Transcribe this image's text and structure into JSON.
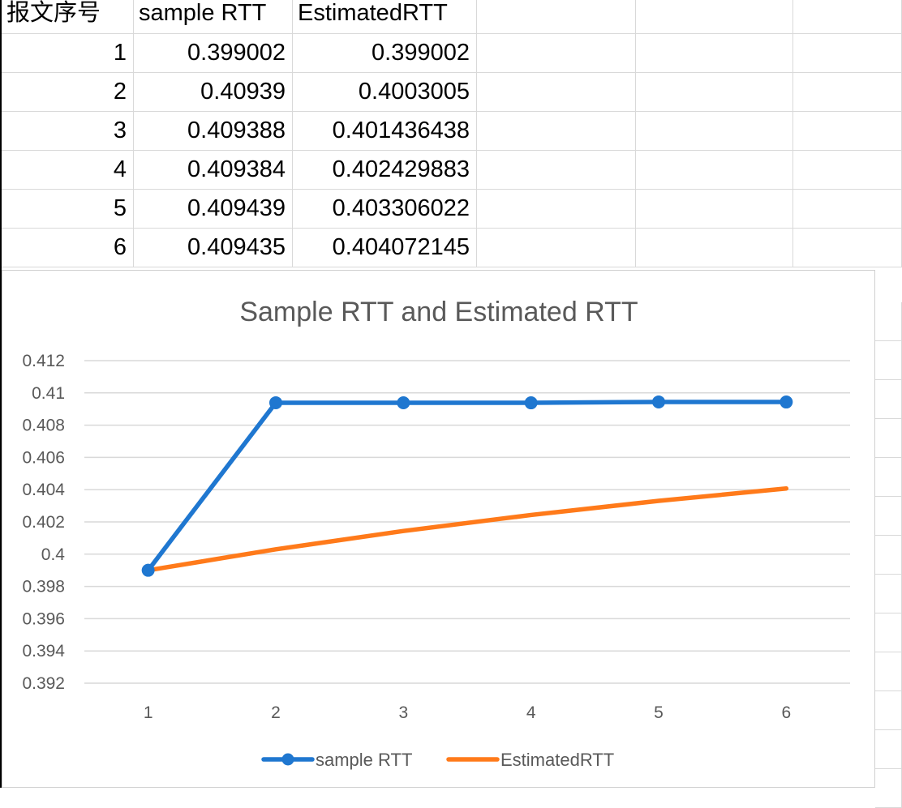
{
  "table": {
    "headers": [
      "报文序号",
      "sample RTT",
      "EstimatedRTT"
    ],
    "rows": [
      [
        "1",
        "0.399002",
        "0.399002"
      ],
      [
        "2",
        "0.40939",
        "0.4003005"
      ],
      [
        "3",
        "0.409388",
        "0.401436438"
      ],
      [
        "4",
        "0.409384",
        "0.402429883"
      ],
      [
        "5",
        "0.409439",
        "0.403306022"
      ],
      [
        "6",
        "0.409435",
        "0.404072145"
      ]
    ]
  },
  "chart_data": {
    "type": "line",
    "title": "Sample RTT and Estimated RTT",
    "xlabel": "",
    "ylabel": "",
    "categories": [
      "1",
      "2",
      "3",
      "4",
      "5",
      "6"
    ],
    "ylim": [
      0.392,
      0.412
    ],
    "yticks": [
      "0.392",
      "0.394",
      "0.396",
      "0.398",
      "0.4",
      "0.402",
      "0.404",
      "0.406",
      "0.408",
      "0.41",
      "0.412"
    ],
    "grid": true,
    "legend": "bottom",
    "series": [
      {
        "name": "sample RTT",
        "values": [
          0.399002,
          0.40939,
          0.409388,
          0.409384,
          0.409439,
          0.409435
        ],
        "color": "#1f77d0",
        "markers": true
      },
      {
        "name": "EstimatedRTT",
        "values": [
          0.399002,
          0.4003005,
          0.401436438,
          0.402429883,
          0.403306022,
          0.404072145
        ],
        "color": "#ff7a1a",
        "markers": false
      }
    ]
  }
}
